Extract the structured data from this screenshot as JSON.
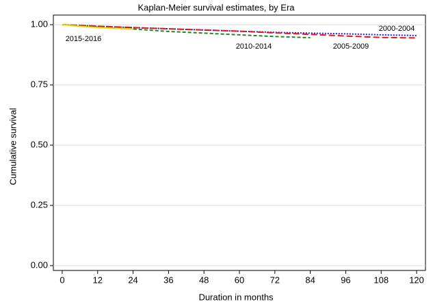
{
  "chart_data": {
    "type": "line",
    "title": "Kaplan-Meier survival estimates, by Era",
    "x_label": "Duration in months",
    "y_label": "Cumulative survival",
    "xlim": [
      -3,
      123
    ],
    "ylim": [
      -0.02,
      1.04
    ],
    "xticks": [
      0,
      12,
      24,
      36,
      48,
      60,
      72,
      84,
      96,
      108,
      120
    ],
    "yticks": [
      {
        "value": 0,
        "label": "0.00"
      },
      {
        "value": 0.25,
        "label": "0.25"
      },
      {
        "value": 0.5,
        "label": "0.50"
      },
      {
        "value": 0.75,
        "label": "0.75"
      },
      {
        "value": 1,
        "label": "1.00"
      }
    ],
    "grid": true,
    "series": [
      {
        "name": "2000-2004",
        "color": "#1a1adb",
        "x": [
          0,
          12,
          24,
          36,
          48,
          60,
          72,
          84,
          96,
          108,
          120
        ],
        "values": [
          1.0,
          0.993,
          0.988,
          0.983,
          0.978,
          0.973,
          0.968,
          0.965,
          0.962,
          0.958,
          0.955
        ]
      },
      {
        "name": "2005-2009",
        "color": "#e8141e",
        "x": [
          0,
          12,
          24,
          36,
          48,
          60,
          72,
          84,
          96,
          108,
          120
        ],
        "values": [
          1.0,
          0.994,
          0.988,
          0.983,
          0.978,
          0.973,
          0.966,
          0.96,
          0.953,
          0.947,
          0.945
        ]
      },
      {
        "name": "2010-2014",
        "color": "#1a8a1a",
        "x": [
          0,
          12,
          24,
          36,
          48,
          60,
          72,
          84
        ],
        "values": [
          1.0,
          0.99,
          0.982,
          0.972,
          0.965,
          0.958,
          0.951,
          0.946
        ]
      },
      {
        "name": "2015-2016",
        "color": "#f0d800",
        "x": [
          0,
          6,
          12,
          18,
          24
        ],
        "values": [
          1.0,
          0.993,
          0.988,
          0.985,
          0.982
        ]
      }
    ]
  }
}
